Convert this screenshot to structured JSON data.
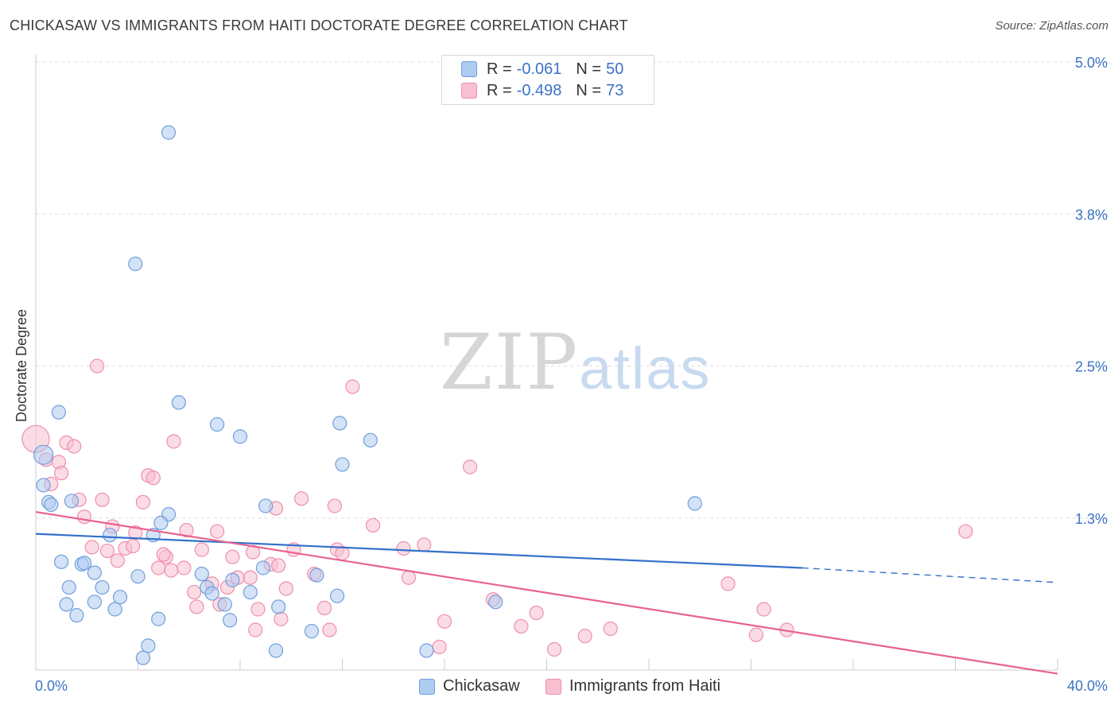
{
  "header": {
    "title": "CHICKASAW VS IMMIGRANTS FROM HAITI DOCTORATE DEGREE CORRELATION CHART",
    "source": "Source: ZipAtlas.com"
  },
  "watermark": {
    "zip": "ZIP",
    "atlas": "atlas"
  },
  "legend": {
    "rows": [
      {
        "r_label": "R =",
        "r_value": "-0.061",
        "n_label": "N =",
        "n_value": "50"
      },
      {
        "r_label": "R =",
        "r_value": "-0.498",
        "n_label": "N =",
        "n_value": "73"
      }
    ]
  },
  "bottom_legend": {
    "series1": "Chickasaw",
    "series2": "Immigrants from Haiti"
  },
  "colors": {
    "blue_fill": "#aecbf0",
    "blue_stroke": "#6f9fdc",
    "blue_line": "#3370cc",
    "pink_fill": "#f8bfd0",
    "pink_stroke": "#ee8fac",
    "pink_line": "#e8628f",
    "tick_label": "#3a72c4",
    "grid": "#dddddd"
  },
  "chart_data": {
    "type": "scatter",
    "title": "CHICKASAW VS IMMIGRANTS FROM HAITI DOCTORATE DEGREE CORRELATION CHART",
    "xlabel": "",
    "ylabel": "Doctorate Degree",
    "xlim": [
      0,
      40
    ],
    "ylim": [
      0,
      5.0
    ],
    "x_tick_labels": [
      "0.0%",
      "40.0%"
    ],
    "y_ticks": [
      1.25,
      2.5,
      3.75,
      5.0
    ],
    "y_tick_labels": [
      "1.3%",
      "2.5%",
      "3.8%",
      "5.0%"
    ],
    "grid": true,
    "series": [
      {
        "name": "Chickasaw",
        "r": -0.061,
        "n": 50,
        "trend": {
          "x0": 0,
          "y0": 1.12,
          "x1": 30,
          "y1": 0.84,
          "dashed_to": 40,
          "dashed_y": 0.72
        },
        "points": [
          [
            5.2,
            4.42
          ],
          [
            3.9,
            3.34
          ],
          [
            5.6,
            2.2
          ],
          [
            0.9,
            2.12
          ],
          [
            7.1,
            2.02
          ],
          [
            8.0,
            1.92
          ],
          [
            11.9,
            2.03
          ],
          [
            13.1,
            1.89
          ],
          [
            12.0,
            1.69
          ],
          [
            0.3,
            1.77
          ],
          [
            0.3,
            1.52
          ],
          [
            0.5,
            1.38
          ],
          [
            0.6,
            1.36
          ],
          [
            1.4,
            1.39
          ],
          [
            5.2,
            1.28
          ],
          [
            4.9,
            1.21
          ],
          [
            2.9,
            1.11
          ],
          [
            4.6,
            1.11
          ],
          [
            9.0,
            1.35
          ],
          [
            25.8,
            1.37
          ],
          [
            1.0,
            0.89
          ],
          [
            1.8,
            0.87
          ],
          [
            1.9,
            0.88
          ],
          [
            2.3,
            0.8
          ],
          [
            4.0,
            0.77
          ],
          [
            6.5,
            0.79
          ],
          [
            11.0,
            0.78
          ],
          [
            1.3,
            0.68
          ],
          [
            2.6,
            0.68
          ],
          [
            2.3,
            0.56
          ],
          [
            3.3,
            0.6
          ],
          [
            6.7,
            0.68
          ],
          [
            6.9,
            0.63
          ],
          [
            8.4,
            0.64
          ],
          [
            11.8,
            0.61
          ],
          [
            7.4,
            0.54
          ],
          [
            9.5,
            0.52
          ],
          [
            1.6,
            0.45
          ],
          [
            3.1,
            0.5
          ],
          [
            1.2,
            0.54
          ],
          [
            18.0,
            0.56
          ],
          [
            4.8,
            0.42
          ],
          [
            7.6,
            0.41
          ],
          [
            10.8,
            0.32
          ],
          [
            4.4,
            0.2
          ],
          [
            4.2,
            0.1
          ],
          [
            9.4,
            0.16
          ],
          [
            15.3,
            0.16
          ],
          [
            8.9,
            0.84
          ],
          [
            7.7,
            0.74
          ]
        ]
      },
      {
        "name": "Immigrants from Haiti",
        "r": -0.498,
        "n": 73,
        "trend": {
          "x0": 0,
          "y0": 1.3,
          "x1": 40,
          "y1": -0.03
        },
        "points": [
          [
            0.0,
            1.9
          ],
          [
            2.4,
            2.5
          ],
          [
            12.4,
            2.33
          ],
          [
            5.4,
            1.88
          ],
          [
            1.2,
            1.87
          ],
          [
            1.5,
            1.84
          ],
          [
            0.4,
            1.73
          ],
          [
            0.9,
            1.71
          ],
          [
            1.0,
            1.62
          ],
          [
            0.6,
            1.53
          ],
          [
            4.4,
            1.6
          ],
          [
            4.6,
            1.58
          ],
          [
            17.0,
            1.67
          ],
          [
            1.7,
            1.4
          ],
          [
            2.6,
            1.4
          ],
          [
            4.2,
            1.38
          ],
          [
            10.4,
            1.41
          ],
          [
            11.7,
            1.35
          ],
          [
            9.4,
            1.33
          ],
          [
            1.9,
            1.26
          ],
          [
            3.0,
            1.18
          ],
          [
            3.9,
            1.13
          ],
          [
            5.9,
            1.15
          ],
          [
            7.1,
            1.14
          ],
          [
            13.2,
            1.19
          ],
          [
            2.2,
            1.01
          ],
          [
            2.8,
            0.98
          ],
          [
            3.5,
            1.0
          ],
          [
            3.8,
            1.02
          ],
          [
            6.5,
            0.99
          ],
          [
            8.5,
            0.97
          ],
          [
            10.1,
            0.99
          ],
          [
            11.8,
            0.99
          ],
          [
            12.0,
            0.96
          ],
          [
            14.4,
            1.0
          ],
          [
            15.2,
            1.03
          ],
          [
            5.1,
            0.93
          ],
          [
            7.7,
            0.93
          ],
          [
            3.2,
            0.9
          ],
          [
            4.8,
            0.84
          ],
          [
            5.3,
            0.82
          ],
          [
            5.8,
            0.84
          ],
          [
            9.2,
            0.87
          ],
          [
            9.5,
            0.86
          ],
          [
            7.9,
            0.76
          ],
          [
            8.4,
            0.76
          ],
          [
            10.9,
            0.79
          ],
          [
            14.6,
            0.76
          ],
          [
            7.5,
            0.68
          ],
          [
            6.2,
            0.64
          ],
          [
            9.8,
            0.67
          ],
          [
            36.4,
            1.14
          ],
          [
            27.1,
            0.71
          ],
          [
            17.9,
            0.58
          ],
          [
            6.3,
            0.52
          ],
          [
            7.2,
            0.54
          ],
          [
            8.7,
            0.5
          ],
          [
            11.3,
            0.51
          ],
          [
            19.6,
            0.47
          ],
          [
            28.5,
            0.5
          ],
          [
            9.6,
            0.42
          ],
          [
            16.0,
            0.4
          ],
          [
            8.6,
            0.33
          ],
          [
            11.5,
            0.33
          ],
          [
            19.0,
            0.36
          ],
          [
            22.5,
            0.34
          ],
          [
            21.5,
            0.28
          ],
          [
            29.4,
            0.33
          ],
          [
            15.8,
            0.19
          ],
          [
            20.3,
            0.17
          ],
          [
            28.2,
            0.29
          ],
          [
            6.9,
            0.71
          ],
          [
            5.0,
            0.95
          ]
        ]
      }
    ]
  }
}
